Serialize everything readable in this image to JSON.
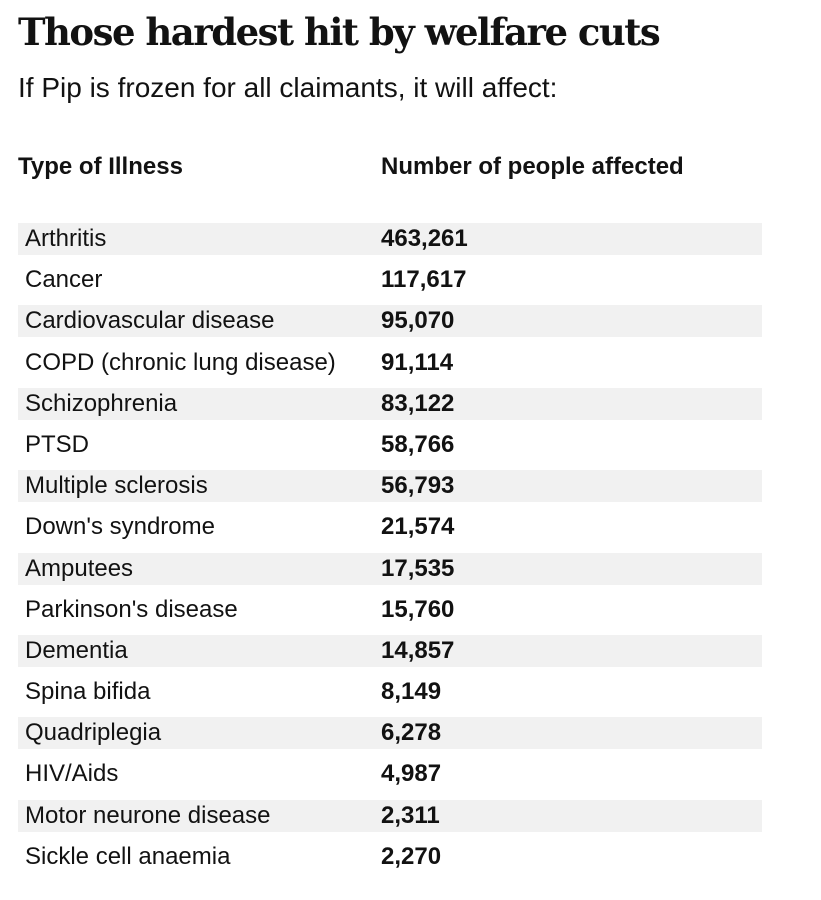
{
  "title": "Those hardest hit by welfare cuts",
  "subtitle": "If Pip is frozen for all claimants, it will affect:",
  "table": {
    "headers": {
      "illness": "Type of Illness",
      "number": "Number of people affected"
    },
    "rows": [
      {
        "illness": "Arthritis",
        "number": "463,261"
      },
      {
        "illness": "Cancer",
        "number": "117,617"
      },
      {
        "illness": "Cardiovascular disease",
        "number": "95,070"
      },
      {
        "illness": "COPD (chronic lung disease)",
        "number": "91,114"
      },
      {
        "illness": "Schizophrenia",
        "number": "83,122"
      },
      {
        "illness": "PTSD",
        "number": "58,766"
      },
      {
        "illness": "Multiple sclerosis",
        "number": "56,793"
      },
      {
        "illness": "Down's syndrome",
        "number": "21,574"
      },
      {
        "illness": "Amputees",
        "number": "17,535"
      },
      {
        "illness": "Parkinson's disease",
        "number": "15,760"
      },
      {
        "illness": "Dementia",
        "number": "14,857"
      },
      {
        "illness": "Spina bifida",
        "number": "8,149"
      },
      {
        "illness": "Quadriplegia",
        "number": "6,278"
      },
      {
        "illness": "HIV/Aids",
        "number": "4,987"
      },
      {
        "illness": "Motor neurone disease",
        "number": "2,311"
      },
      {
        "illness": "Sickle cell anaemia",
        "number": "2,270"
      }
    ]
  },
  "colors": {
    "text": "#121212",
    "stripe": "#f1f1f1",
    "background": "#ffffff"
  }
}
